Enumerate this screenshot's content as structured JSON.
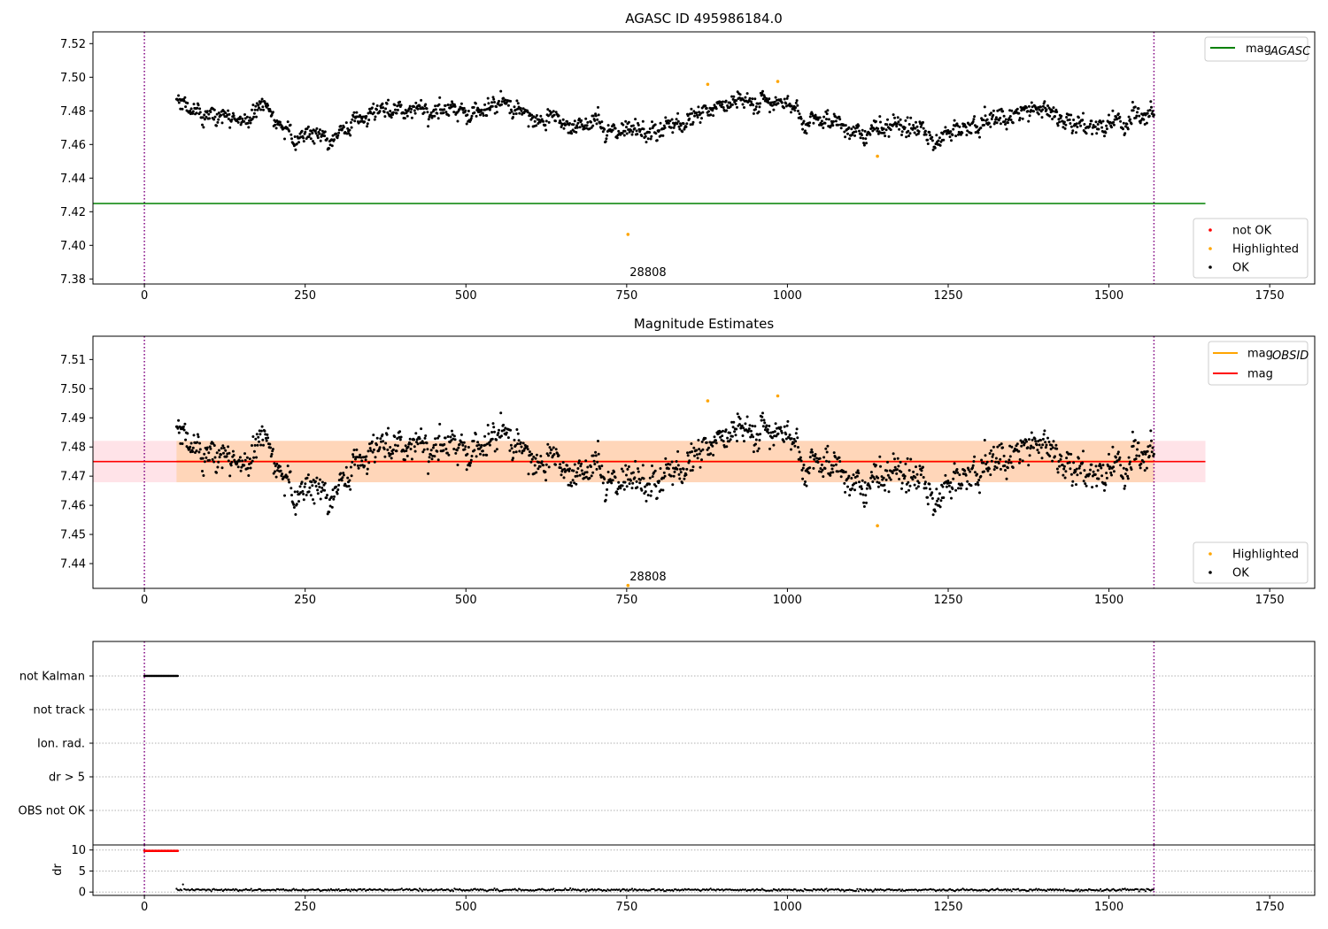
{
  "chart_data": [
    {
      "type": "scatter",
      "title": "AGASC ID 495986184.0",
      "xlim": [
        -80,
        1820
      ],
      "ylim": [
        7.377,
        7.527
      ],
      "xticks": [
        0,
        250,
        500,
        750,
        1000,
        1250,
        1500,
        1750
      ],
      "yticks": [
        7.38,
        7.4,
        7.42,
        7.44,
        7.46,
        7.48,
        7.5,
        7.52
      ],
      "ytick_labels": [
        "7.38",
        "7.40",
        "7.42",
        "7.44",
        "7.46",
        "7.48",
        "7.50",
        "7.52"
      ],
      "vlines": [
        0,
        1570
      ],
      "hline": {
        "y": 7.4249,
        "x0": -80,
        "x1": 1650,
        "color": "#008000"
      },
      "annotation": {
        "text": "28808",
        "x": 752
      },
      "highlighted_points": [
        [
          752,
          7.4065
        ],
        [
          876,
          7.4958
        ],
        [
          985,
          7.4975
        ],
        [
          1140,
          7.453
        ]
      ],
      "ok_series": {
        "x_start": 50,
        "x_end": 1570,
        "count": 1520
      },
      "legend_upper": [
        {
          "label": "mag",
          "subscript": "AGASC",
          "color": "#008000",
          "kind": "line"
        }
      ],
      "legend_lower": [
        {
          "label": "not OK",
          "color": "#ff0000",
          "kind": "marker"
        },
        {
          "label": "Highlighted",
          "color": "#ffa500",
          "kind": "marker"
        },
        {
          "label": "OK",
          "color": "#000000",
          "kind": "marker"
        }
      ]
    },
    {
      "type": "scatter",
      "title": "Magnitude Estimates",
      "xlim": [
        -80,
        1820
      ],
      "ylim": [
        7.4315,
        7.518
      ],
      "xticks": [
        0,
        250,
        500,
        750,
        1000,
        1250,
        1500,
        1750
      ],
      "yticks": [
        7.44,
        7.45,
        7.46,
        7.47,
        7.48,
        7.49,
        7.5,
        7.51
      ],
      "ytick_labels": [
        "7.44",
        "7.45",
        "7.46",
        "7.47",
        "7.48",
        "7.49",
        "7.50",
        "7.51"
      ],
      "vlines": [
        0,
        1570
      ],
      "mag_line": {
        "y": 7.475,
        "x0": -80,
        "x1": 1650,
        "color": "#ff0000"
      },
      "mag_band": {
        "y0": 7.4679,
        "y1": 7.4821,
        "x0": -80,
        "x1": 1650,
        "color": "#ffc0cb"
      },
      "obsid_line": {
        "y": 7.475,
        "x0": 50,
        "x1": 1570,
        "color": "#ffa500"
      },
      "obsid_band": {
        "y0": 7.4679,
        "y1": 7.4821,
        "x0": 50,
        "x1": 1570,
        "color": "#ffa500"
      },
      "annotation": {
        "text": "28808",
        "x": 752
      },
      "highlighted_points": [
        [
          752,
          7.4325
        ],
        [
          876,
          7.4958
        ],
        [
          985,
          7.4975
        ],
        [
          1140,
          7.453
        ]
      ],
      "ok_series": {
        "x_start": 50,
        "x_end": 1570,
        "count": 1520
      },
      "legend_upper": [
        {
          "label": "mag",
          "subscript": "OBSID",
          "color": "#ffa500",
          "kind": "line"
        },
        {
          "label": "mag",
          "subscript": "",
          "color": "#ff0000",
          "kind": "line"
        }
      ],
      "legend_lower": [
        {
          "label": "Highlighted",
          "color": "#ffa500",
          "kind": "marker"
        },
        {
          "label": "OK",
          "color": "#000000",
          "kind": "marker"
        }
      ]
    },
    {
      "type": "scatter",
      "xlim": [
        -80,
        1820
      ],
      "categories": [
        "not Kalman",
        "not track",
        "Ion. rad.",
        "dr > 5",
        "OBS not OK"
      ],
      "flag_ranges": [
        {
          "category": "not Kalman",
          "x0": 0,
          "x1": 52
        }
      ],
      "vlines": [
        0,
        1570
      ]
    },
    {
      "type": "scatter",
      "xlim": [
        -80,
        1820
      ],
      "ylim": [
        -0.8,
        11.2
      ],
      "ylabel": "dr",
      "xticks": [
        0,
        250,
        500,
        750,
        1000,
        1250,
        1500,
        1750
      ],
      "yticks": [
        0,
        5,
        10
      ],
      "ytick_labels": [
        "0",
        "5",
        "10"
      ],
      "red_segment": {
        "x0": 0,
        "x1": 52,
        "y": 9.8,
        "color": "#ff0000"
      },
      "ok_series": {
        "x_start": 50,
        "x_end": 1570,
        "count": 1520,
        "typical": 0.5
      },
      "vlines": [
        0,
        1570
      ]
    }
  ]
}
